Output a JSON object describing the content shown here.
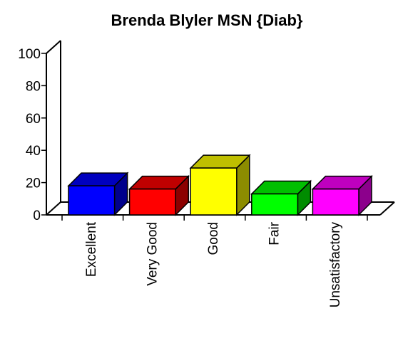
{
  "chart_data": {
    "type": "bar3d",
    "title": "Brenda Blyler MSN {Diab}",
    "categories": [
      "Excellent",
      "Very Good",
      "Good",
      "Fair",
      "Unsatisfactory"
    ],
    "values": [
      18,
      16,
      29,
      13,
      16
    ],
    "colors": [
      "#0000ff",
      "#ff0000",
      "#ffff00",
      "#00ff00",
      "#ff00ff"
    ],
    "ylim": [
      0,
      100
    ],
    "yticks": [
      0,
      20,
      40,
      60,
      80,
      100
    ]
  }
}
